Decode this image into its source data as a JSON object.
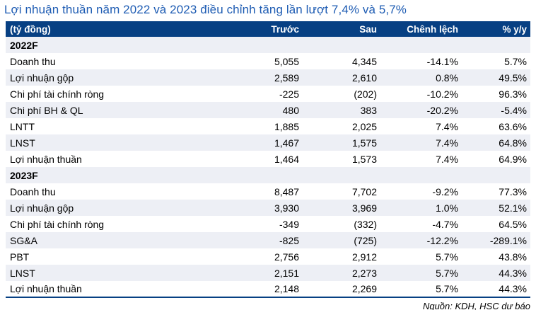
{
  "title": "Lợi nhuận thuần năm 2022 và 2023 điều chỉnh tăng lần lượt 7,4% và 5,7%",
  "colors": {
    "title_blue": "#1E5CB3",
    "header_bg": "#074083",
    "header_text": "#FFFFFF",
    "row_alt_bg": "#EDEFF5",
    "table_bottom_border": "#074083"
  },
  "table": {
    "unit_label": "(tỷ đồng)",
    "columns": [
      "Trước",
      "Sau",
      "Chênh lệch",
      "% y/y"
    ],
    "sections": [
      {
        "label": "2022F",
        "rows": [
          {
            "label": "Doanh thu",
            "truoc": "5,055",
            "sau": "4,345",
            "chenh_lech": "-14.1%",
            "yoy": "5.7%"
          },
          {
            "label": "Lợi nhuận gộp",
            "truoc": "2,589",
            "sau": "2,610",
            "chenh_lech": "0.8%",
            "yoy": "49.5%"
          },
          {
            "label": "Chi phí tài chính ròng",
            "truoc": "-225",
            "sau": "(202)",
            "chenh_lech": "-10.2%",
            "yoy": "96.3%"
          },
          {
            "label": "Chi phí BH & QL",
            "truoc": "480",
            "sau": "383",
            "chenh_lech": "-20.2%",
            "yoy": "-5.4%"
          },
          {
            "label": "LNTT",
            "truoc": "1,885",
            "sau": "2,025",
            "chenh_lech": "7.4%",
            "yoy": "63.6%"
          },
          {
            "label": "LNST",
            "truoc": "1,467",
            "sau": "1,575",
            "chenh_lech": "7.4%",
            "yoy": "64.8%"
          },
          {
            "label": "Lợi nhuận thuần",
            "truoc": "1,464",
            "sau": "1,573",
            "chenh_lech": "7.4%",
            "yoy": "64.9%"
          }
        ]
      },
      {
        "label": "2023F",
        "rows": [
          {
            "label": "Doanh thu",
            "truoc": "8,487",
            "sau": "7,702",
            "chenh_lech": "-9.2%",
            "yoy": "77.3%"
          },
          {
            "label": "Lợi nhuận gộp",
            "truoc": "3,930",
            "sau": "3,969",
            "chenh_lech": "1.0%",
            "yoy": "52.1%"
          },
          {
            "label": "Chi phí tài chính ròng",
            "truoc": "-349",
            "sau": "(332)",
            "chenh_lech": "-4.7%",
            "yoy": "64.5%"
          },
          {
            "label": "SG&A",
            "truoc": "-825",
            "sau": "(725)",
            "chenh_lech": "-12.2%",
            "yoy": "-289.1%"
          },
          {
            "label": "PBT",
            "truoc": "2,756",
            "sau": "2,912",
            "chenh_lech": "5.7%",
            "yoy": "43.8%"
          },
          {
            "label": "LNST",
            "truoc": "2,151",
            "sau": "2,273",
            "chenh_lech": "5.7%",
            "yoy": "44.3%"
          },
          {
            "label": "Lợi nhuận thuần",
            "truoc": "2,148",
            "sau": "2,269",
            "chenh_lech": "5.7%",
            "yoy": "44.3%"
          }
        ]
      }
    ]
  },
  "footer": {
    "source": "Nguồn: KDH, HSC dự báo"
  }
}
